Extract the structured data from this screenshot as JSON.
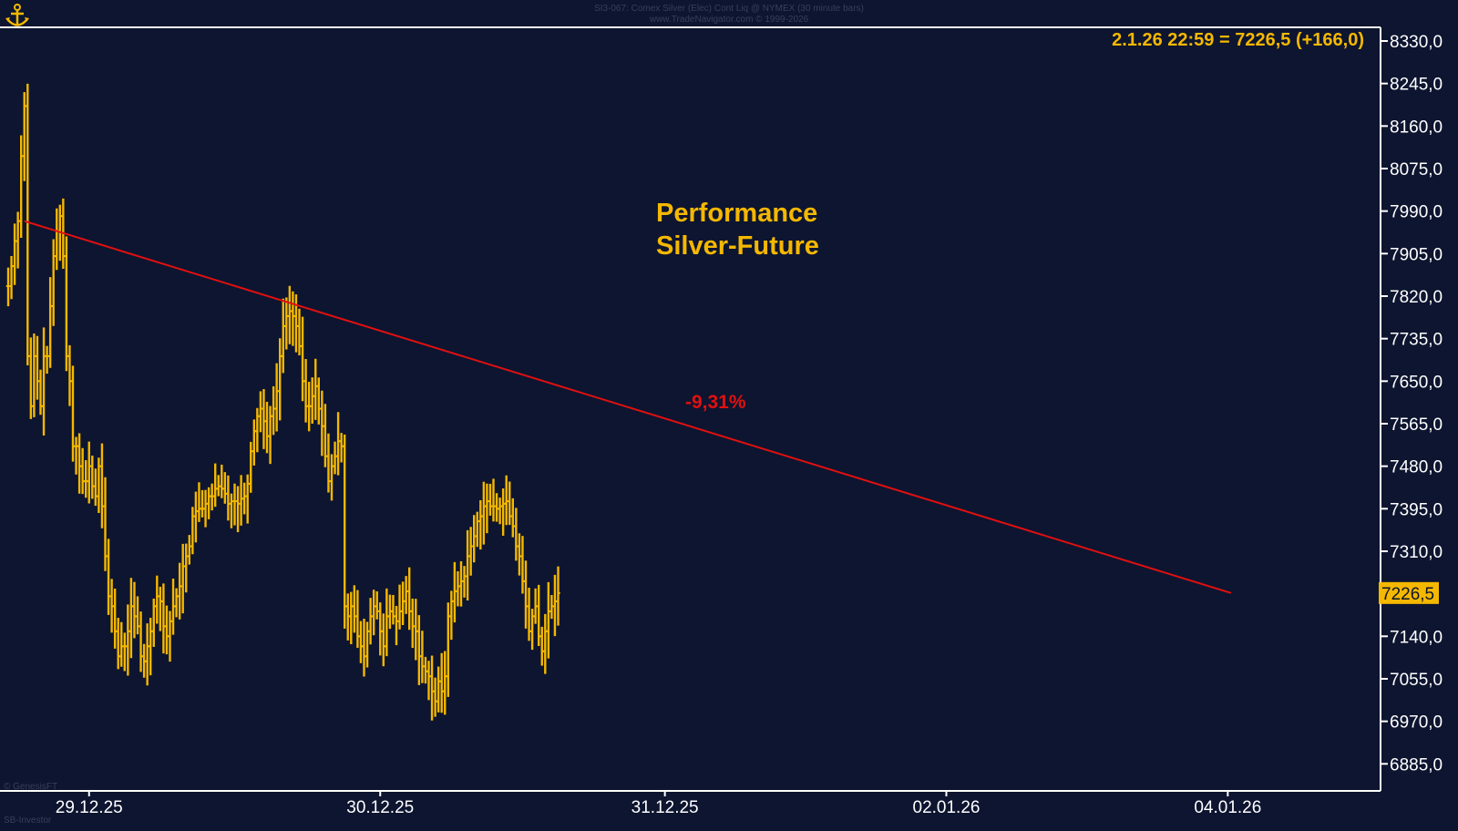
{
  "header": {
    "line1": "SI3-067: Comex Silver (Elec) Cont Liq @ NYMEX (30 minute bars)",
    "line2": "www.TradeNavigator.com © 1999-2026"
  },
  "readout": "2.1.26 22:59 = 7226,5 (+166,0)",
  "performance_label": [
    "Performance",
    "Silver-Future"
  ],
  "trend_change_label": "-9,31%",
  "price_tag": "7226,5",
  "footer": {
    "left_top": "© GenesisFT",
    "left_bottom": "SB-Investor"
  },
  "colors": {
    "background": "#0d1530",
    "bars": "#f5b800",
    "trendline": "#e01010",
    "axis_text": "#ffffff",
    "readout": "#f5b800",
    "label_red": "#e01010"
  },
  "chart_data": {
    "type": "ohlc",
    "title": "",
    "xlabel": "",
    "ylabel": "",
    "ylim": [
      6850,
      8365
    ],
    "y_ticks": [
      "8330,0",
      "8245,0",
      "8160,0",
      "8075,0",
      "7990,0",
      "7905,0",
      "7820,0",
      "7735,0",
      "7650,0",
      "7565,0",
      "7480,0",
      "7395,0",
      "7310,0",
      "7226,5",
      "7140,0",
      "7055,0",
      "6970,0",
      "6885,0"
    ],
    "x_ticks": [
      {
        "label": "29.12.25",
        "bar": 25
      },
      {
        "label": "30.12.25",
        "bar": 115
      },
      {
        "label": "31.12.25",
        "bar": 203
      },
      {
        "label": "02.01.26",
        "bar": 290
      },
      {
        "label": "04.01.26",
        "bar": 377
      }
    ],
    "close_path": [
      7840,
      7880,
      7930,
      7970,
      8100,
      8200,
      7700,
      7600,
      7700,
      7650,
      7600,
      7700,
      7700,
      7800,
      7900,
      7950,
      7980,
      7900,
      7700,
      7650,
      7520,
      7520,
      7480,
      7450,
      7450,
      7480,
      7440,
      7420,
      7480,
      7400,
      7300,
      7220,
      7200,
      7150,
      7100,
      7120,
      7120,
      7150,
      7200,
      7180,
      7160,
      7100,
      7090,
      7120,
      7150,
      7200,
      7220,
      7210,
      7160,
      7140,
      7170,
      7200,
      7220,
      7240,
      7280,
      7300,
      7320,
      7380,
      7390,
      7395,
      7395,
      7405,
      7420,
      7420,
      7435,
      7440,
      7435,
      7425,
      7405,
      7410,
      7410,
      7405,
      7415,
      7420,
      7445,
      7510,
      7550,
      7580,
      7595,
      7570,
      7540,
      7580,
      7595,
      7630,
      7700,
      7760,
      7780,
      7790,
      7780,
      7760,
      7720,
      7650,
      7600,
      7600,
      7620,
      7640,
      7595,
      7560,
      7500,
      7450,
      7480,
      7500,
      7530,
      7520,
      7200,
      7180,
      7200,
      7180,
      7140,
      7120,
      7100,
      7150,
      7180,
      7200,
      7190,
      7150,
      7120,
      7180,
      7190,
      7180,
      7170,
      7190,
      7210,
      7230,
      7190,
      7160,
      7150,
      7100,
      7080,
      7070,
      7060,
      7030,
      7010,
      7050,
      7030,
      7060,
      7180,
      7210,
      7230,
      7240,
      7250,
      7260,
      7300,
      7320,
      7340,
      7370,
      7380,
      7400,
      7410,
      7400,
      7400,
      7395,
      7400,
      7405,
      7410,
      7380,
      7360,
      7320,
      7300,
      7250,
      7200,
      7150,
      7180,
      7200,
      7140,
      7110,
      7150,
      7190,
      7200,
      7210,
      7226.5
    ],
    "trendline": {
      "from": {
        "bar": 5,
        "price": 7970
      },
      "to": {
        "bar": 378,
        "price": 7226.5
      }
    },
    "annotations": [
      {
        "text": "Performance",
        "position": "upper-middle"
      },
      {
        "text": "Silver-Future",
        "position": "upper-middle"
      },
      {
        "text": "-9,31%",
        "position": "on-trendline"
      }
    ],
    "grid": false,
    "legend": "none"
  }
}
